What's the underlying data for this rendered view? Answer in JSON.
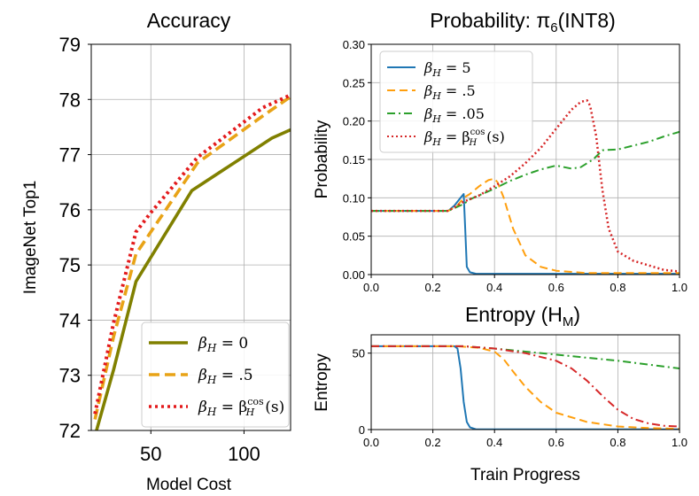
{
  "colors": {
    "olive": "#808000",
    "orange": "#ff9f0e",
    "orange_dark": "#e8a317",
    "red": "#d62728",
    "red_dot": "#e31a1c",
    "blue": "#1f77b4",
    "green": "#2ca02c",
    "grid": "#b0b0b0"
  },
  "chart_data": [
    {
      "id": "accuracy",
      "type": "line",
      "title": "Accuracy",
      "xlabel": "Model Cost",
      "ylabel": "ImageNet Top1",
      "xlim": [
        18,
        125
      ],
      "ylim": [
        72,
        79
      ],
      "xticks": [
        50,
        100
      ],
      "yticks": [
        72,
        73,
        74,
        75,
        76,
        77,
        78,
        79
      ],
      "grid": true,
      "legend_position": "lower-right",
      "series": [
        {
          "name": "β_H = 0",
          "legend": {
            "main": "β",
            "sub": "H",
            "rest": " = 0"
          },
          "color": "#808000",
          "style": "solid",
          "x": [
            20,
            30,
            42,
            72,
            115,
            125
          ],
          "y": [
            71.9,
            73.1,
            74.7,
            76.35,
            77.3,
            77.45
          ]
        },
        {
          "name": "β_H = .5",
          "legend": {
            "main": "β",
            "sub": "H",
            "rest": " = .5"
          },
          "color": "#e8a317",
          "style": "dashed",
          "x": [
            20,
            30,
            42,
            50,
            75,
            110,
            125
          ],
          "y": [
            72.2,
            73.7,
            75.2,
            75.6,
            76.85,
            77.7,
            78.05
          ]
        },
        {
          "name": "β_H = β_H^cos(s)",
          "legend": {
            "main": "β",
            "sub": "H",
            "rest": " = β",
            "sup2": "cos",
            "sub2": "H",
            "tail": "(s)"
          },
          "color": "#e31a1c",
          "style": "dotted",
          "x": [
            20,
            30,
            42,
            50,
            75,
            110,
            125
          ],
          "y": [
            72.3,
            73.95,
            75.6,
            75.95,
            76.95,
            77.85,
            78.08
          ]
        }
      ]
    },
    {
      "id": "probability",
      "type": "line",
      "title": "Probability: π",
      "title_sub": "6",
      "title_tail": "(INT8)",
      "xlabel": "",
      "ylabel": "Probability",
      "xlim": [
        0,
        1
      ],
      "ylim": [
        0,
        0.3
      ],
      "xticks": [
        "0.0",
        "0.2",
        "0.4",
        "0.6",
        "0.8",
        "1.0"
      ],
      "yticks": [
        "0.00",
        "0.05",
        "0.10",
        "0.15",
        "0.20",
        "0.25",
        "0.30"
      ],
      "grid": true,
      "legend_position": "upper-left",
      "series": [
        {
          "name": "β_H = 5",
          "legend": {
            "main": "β",
            "sub": "H",
            "rest": " = 5"
          },
          "color": "#1f77b4",
          "style": "solid",
          "x": [
            0,
            0.25,
            0.27,
            0.29,
            0.3,
            0.305,
            0.31,
            0.32,
            0.34,
            1.0
          ],
          "y": [
            0.083,
            0.083,
            0.09,
            0.1,
            0.105,
            0.06,
            0.01,
            0.003,
            0.001,
            0.001
          ]
        },
        {
          "name": "β_H = .5",
          "legend": {
            "main": "β",
            "sub": "H",
            "rest": " = .5"
          },
          "color": "#ff9f0e",
          "style": "dashed",
          "x": [
            0,
            0.25,
            0.28,
            0.3,
            0.32,
            0.35,
            0.38,
            0.4,
            0.41,
            0.43,
            0.46,
            0.5,
            0.55,
            0.6,
            0.7,
            1.0
          ],
          "y": [
            0.083,
            0.083,
            0.09,
            0.1,
            0.105,
            0.115,
            0.123,
            0.125,
            0.12,
            0.1,
            0.06,
            0.025,
            0.01,
            0.005,
            0.002,
            0.002
          ]
        },
        {
          "name": "β_H = .05",
          "legend": {
            "main": "β",
            "sub": "H",
            "rest": " = .05"
          },
          "color": "#2ca02c",
          "style": "dashdot",
          "x": [
            0,
            0.25,
            0.3,
            0.32,
            0.4,
            0.45,
            0.5,
            0.55,
            0.6,
            0.65,
            0.68,
            0.7,
            0.72,
            0.75,
            0.8,
            0.85,
            0.9,
            0.95,
            1.0
          ],
          "y": [
            0.083,
            0.083,
            0.092,
            0.098,
            0.112,
            0.122,
            0.13,
            0.137,
            0.142,
            0.138,
            0.14,
            0.145,
            0.15,
            0.162,
            0.163,
            0.168,
            0.173,
            0.18,
            0.186
          ]
        },
        {
          "name": "β_H = β_H^cos(s)",
          "legend": {
            "main": "β",
            "sub": "H",
            "rest": " = β",
            "sup2": "cos",
            "sub2": "H",
            "tail": "(s)"
          },
          "color": "#d62728",
          "style": "dotted",
          "x": [
            0,
            0.25,
            0.3,
            0.35,
            0.4,
            0.45,
            0.5,
            0.55,
            0.6,
            0.65,
            0.68,
            0.7,
            0.71,
            0.73,
            0.75,
            0.77,
            0.8,
            0.85,
            0.9,
            0.95,
            1.0
          ],
          "y": [
            0.083,
            0.083,
            0.095,
            0.103,
            0.115,
            0.128,
            0.145,
            0.165,
            0.19,
            0.215,
            0.225,
            0.227,
            0.22,
            0.18,
            0.11,
            0.06,
            0.03,
            0.018,
            0.012,
            0.006,
            0.004
          ]
        }
      ]
    },
    {
      "id": "entropy",
      "type": "line",
      "title": "Entropy (H",
      "title_sub": "M",
      "title_tail": ")",
      "xlabel": "Train Progress",
      "ylabel": "Entropy",
      "xlim": [
        0,
        1
      ],
      "ylim": [
        0,
        62
      ],
      "xticks": [
        "0.0",
        "0.2",
        "0.4",
        "0.6",
        "0.8",
        "1.0"
      ],
      "yticks": [
        "0",
        "50"
      ],
      "ytick_values": [
        0,
        50
      ],
      "grid": true,
      "series": [
        {
          "name": "β_H = 5",
          "color": "#1f77b4",
          "style": "solid",
          "x": [
            0,
            0.27,
            0.28,
            0.29,
            0.3,
            0.31,
            0.32,
            0.34,
            1.0
          ],
          "y": [
            54.5,
            54.5,
            53,
            40,
            18,
            5,
            1.5,
            0.2,
            0.1
          ]
        },
        {
          "name": "β_H = .5",
          "color": "#ff9f0e",
          "style": "dashed",
          "x": [
            0,
            0.28,
            0.35,
            0.4,
            0.43,
            0.46,
            0.5,
            0.55,
            0.6,
            0.7,
            0.8,
            0.9,
            1.0
          ],
          "y": [
            54.5,
            54.5,
            53.5,
            51,
            46,
            38,
            28,
            18,
            11,
            5,
            2,
            1,
            0.5
          ]
        },
        {
          "name": "β_H = .05",
          "color": "#2ca02c",
          "style": "dashdot",
          "x": [
            0,
            0.3,
            0.4,
            0.5,
            0.6,
            0.7,
            0.8,
            0.9,
            1.0
          ],
          "y": [
            54.5,
            54.5,
            53,
            51,
            49,
            47,
            45,
            42.5,
            40
          ]
        },
        {
          "name": "β_H = β_H^cos(s)",
          "color": "#d62728",
          "style": "dashdot",
          "x": [
            0,
            0.3,
            0.4,
            0.5,
            0.6,
            0.65,
            0.7,
            0.75,
            0.8,
            0.85,
            0.9,
            0.95,
            1.0
          ],
          "y": [
            54.5,
            54.5,
            53,
            50,
            45,
            40,
            32,
            22,
            13,
            7,
            4,
            2.5,
            2
          ]
        }
      ]
    }
  ]
}
